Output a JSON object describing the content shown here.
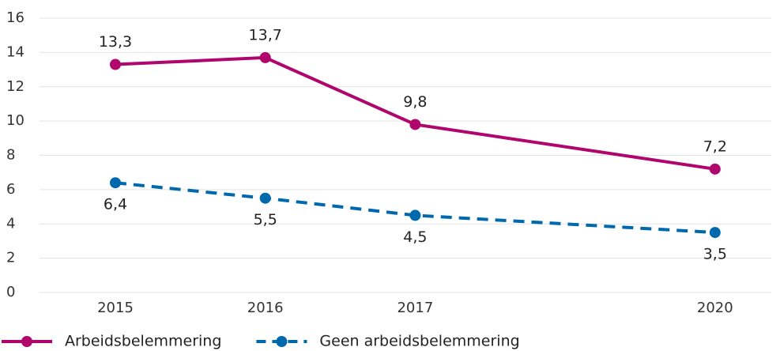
{
  "chart_data": {
    "type": "line",
    "categories": [
      "2015",
      "2016",
      "2017",
      "2020"
    ],
    "series": [
      {
        "name": "Arbeidsbelemmering",
        "color": "#b0056c",
        "dashed": false,
        "values": [
          13.3,
          13.7,
          9.8,
          7.2
        ],
        "value_labels": [
          "13,3",
          "13,7",
          "9,8",
          "7,2"
        ]
      },
      {
        "name": "Geen arbeidsbelemmering",
        "color": "#0068ad",
        "dashed": true,
        "values": [
          6.4,
          5.5,
          4.5,
          3.5
        ],
        "value_labels": [
          "6,4",
          "5,5",
          "4,5",
          "3,5"
        ]
      }
    ],
    "ylim": [
      0,
      16
    ],
    "yticks": [
      0,
      2,
      4,
      6,
      8,
      10,
      12,
      14,
      16
    ],
    "grid": true
  }
}
